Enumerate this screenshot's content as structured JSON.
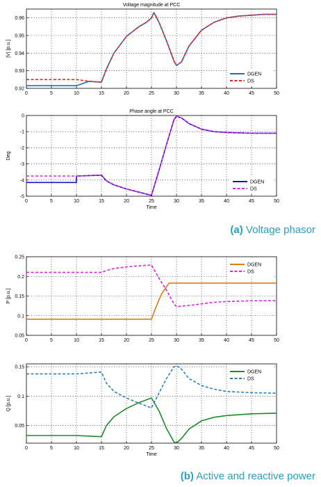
{
  "captions": [
    {
      "letter": "(a)",
      "text": "Voltage phasor"
    },
    {
      "letter": "(b)",
      "text": "Active and reactive power"
    }
  ],
  "chart_data": [
    {
      "type": "line",
      "title": "Voltage magnitude at PCC",
      "xlabel": "",
      "ylabel": "|V| [p.u.]",
      "xlim": [
        0,
        50
      ],
      "ylim": [
        0.92,
        0.965
      ],
      "xticks": [
        "0",
        "5",
        "10",
        "15",
        "20",
        "25",
        "30",
        "35",
        "40",
        "45",
        "50"
      ],
      "yticks": [
        "0.92",
        "0.93",
        "0.94",
        "0.95",
        "0.96"
      ],
      "ytick_values": [
        0.92,
        0.93,
        0.94,
        0.95,
        0.96
      ],
      "grid": true,
      "legend_position": "lower-right",
      "series": [
        {
          "name": "DGEN",
          "color": "#1a6fc9",
          "dash": "solid",
          "x": [
            0,
            10,
            12.5,
            15,
            16,
            17.5,
            20,
            22.5,
            24,
            25,
            25.5,
            26.5,
            28,
            29.5,
            30,
            31,
            32.5,
            35,
            37.5,
            40,
            42.5,
            45,
            47.5,
            50
          ],
          "y": [
            0.9215,
            0.9215,
            0.924,
            0.9235,
            0.931,
            0.94,
            0.9495,
            0.955,
            0.9575,
            0.96,
            0.963,
            0.9575,
            0.947,
            0.9355,
            0.933,
            0.935,
            0.944,
            0.953,
            0.9575,
            0.96,
            0.961,
            0.9615,
            0.962,
            0.962
          ]
        },
        {
          "name": "DS",
          "color": "#e8231f",
          "dash": "dashed",
          "x": [
            0,
            10,
            12.5,
            15,
            16,
            17.5,
            20,
            22.5,
            24,
            25,
            25.5,
            26.5,
            28,
            29.5,
            30,
            31,
            32.5,
            35,
            37.5,
            40,
            42.5,
            45,
            47.5,
            50
          ],
          "y": [
            0.925,
            0.925,
            0.924,
            0.9235,
            0.931,
            0.94,
            0.9495,
            0.955,
            0.9575,
            0.96,
            0.963,
            0.9575,
            0.947,
            0.9355,
            0.933,
            0.935,
            0.944,
            0.953,
            0.9575,
            0.96,
            0.961,
            0.9615,
            0.962,
            0.962
          ]
        }
      ]
    },
    {
      "type": "line",
      "title": "Phase angle at PCC",
      "xlabel": "Time",
      "ylabel": "Deg",
      "xlim": [
        0,
        50
      ],
      "ylim": [
        -5,
        0
      ],
      "xticks": [
        "0",
        "5",
        "10",
        "15",
        "20",
        "25",
        "30",
        "35",
        "40",
        "45",
        "50"
      ],
      "yticks": [
        "-5",
        "-4",
        "-3",
        "-2",
        "-1",
        "0"
      ],
      "ytick_values": [
        -5,
        -4,
        -3,
        -2,
        -1,
        0
      ],
      "grid": true,
      "legend_position": "lower-right",
      "series": [
        {
          "name": "DGEN",
          "color": "#1010d0",
          "dash": "solid",
          "x": [
            0,
            10,
            10,
            15,
            16,
            17.5,
            20,
            22.5,
            25,
            26.5,
            28,
            29.5,
            30,
            31,
            32.5,
            35,
            37.5,
            40,
            45,
            50
          ],
          "y": [
            -4.15,
            -4.15,
            -3.75,
            -3.7,
            -4.05,
            -4.3,
            -4.55,
            -4.75,
            -4.95,
            -3.4,
            -1.8,
            -0.25,
            -0.05,
            -0.15,
            -0.5,
            -0.85,
            -1.0,
            -1.05,
            -1.1,
            -1.1
          ]
        },
        {
          "name": "DS",
          "color": "#e020e0",
          "dash": "dashed",
          "x": [
            0,
            10,
            10,
            15,
            16,
            17.5,
            20,
            22.5,
            25,
            26.5,
            28,
            29.5,
            30,
            31,
            32.5,
            35,
            37.5,
            40,
            45,
            50
          ],
          "y": [
            -3.75,
            -3.75,
            -3.75,
            -3.7,
            -4.05,
            -4.3,
            -4.55,
            -4.75,
            -4.95,
            -3.4,
            -1.8,
            -0.25,
            -0.05,
            -0.15,
            -0.5,
            -0.85,
            -1.0,
            -1.05,
            -1.1,
            -1.1
          ]
        }
      ]
    },
    {
      "type": "line",
      "title": "",
      "xlabel": "",
      "ylabel": "P [p.u.]",
      "xlim": [
        0,
        50
      ],
      "ylim": [
        0.05,
        0.25
      ],
      "xticks": [
        "0",
        "5",
        "10",
        "15",
        "20",
        "25",
        "30",
        "35",
        "40",
        "45",
        "50"
      ],
      "yticks": [
        "0.05",
        "0.1",
        "0.15",
        "0.2",
        "0.25"
      ],
      "ytick_values": [
        0.05,
        0.1,
        0.15,
        0.2,
        0.25
      ],
      "grid": true,
      "legend_position": "top-right",
      "series": [
        {
          "name": "DGEN",
          "color": "#e07b10",
          "dash": "solid",
          "x": [
            0,
            15,
            25,
            26,
            27,
            28.5,
            30,
            35,
            40,
            45,
            50
          ],
          "y": [
            0.091,
            0.091,
            0.091,
            0.125,
            0.155,
            0.183,
            0.183,
            0.183,
            0.183,
            0.183,
            0.183
          ]
        },
        {
          "name": "DS",
          "color": "#e020e0",
          "dash": "dashed",
          "x": [
            0,
            10,
            15,
            16,
            17.5,
            20,
            22.5,
            25,
            26.5,
            28,
            29.5,
            30,
            32.5,
            35,
            37.5,
            40,
            45,
            50
          ],
          "y": [
            0.21,
            0.21,
            0.21,
            0.215,
            0.22,
            0.224,
            0.227,
            0.229,
            0.195,
            0.165,
            0.13,
            0.123,
            0.126,
            0.13,
            0.134,
            0.136,
            0.138,
            0.138
          ]
        }
      ]
    },
    {
      "type": "line",
      "title": "",
      "xlabel": "Time",
      "ylabel": "Q [p.u.]",
      "xlim": [
        0,
        50
      ],
      "ylim": [
        0.02,
        0.155
      ],
      "xticks": [
        "0",
        "5",
        "10",
        "15",
        "20",
        "25",
        "30",
        "35",
        "40",
        "45",
        "50"
      ],
      "yticks": [
        "0.05",
        "0.1",
        "0.15"
      ],
      "ytick_values": [
        0.05,
        0.1,
        0.15
      ],
      "grid": true,
      "legend_position": "top-right",
      "series": [
        {
          "name": "DGEN",
          "color": "#1a8a2a",
          "dash": "solid",
          "x": [
            0,
            10,
            15,
            16,
            17.5,
            20,
            22.5,
            25,
            26.5,
            28,
            29.5,
            30,
            31,
            32.5,
            35,
            37.5,
            40,
            45,
            50
          ],
          "y": [
            0.033,
            0.033,
            0.031,
            0.05,
            0.065,
            0.079,
            0.089,
            0.097,
            0.075,
            0.045,
            0.022,
            0.02,
            0.028,
            0.044,
            0.058,
            0.064,
            0.067,
            0.07,
            0.071
          ]
        },
        {
          "name": "DS",
          "color": "#2a80c0",
          "dash": "dashed",
          "x": [
            0,
            10,
            15,
            16,
            17.5,
            20,
            22.5,
            25,
            26.5,
            28,
            29.5,
            30,
            31,
            32.5,
            35,
            37.5,
            40,
            45,
            50
          ],
          "y": [
            0.138,
            0.138,
            0.141,
            0.122,
            0.108,
            0.097,
            0.088,
            0.08,
            0.105,
            0.13,
            0.15,
            0.152,
            0.146,
            0.13,
            0.118,
            0.112,
            0.108,
            0.106,
            0.105
          ]
        }
      ]
    }
  ]
}
